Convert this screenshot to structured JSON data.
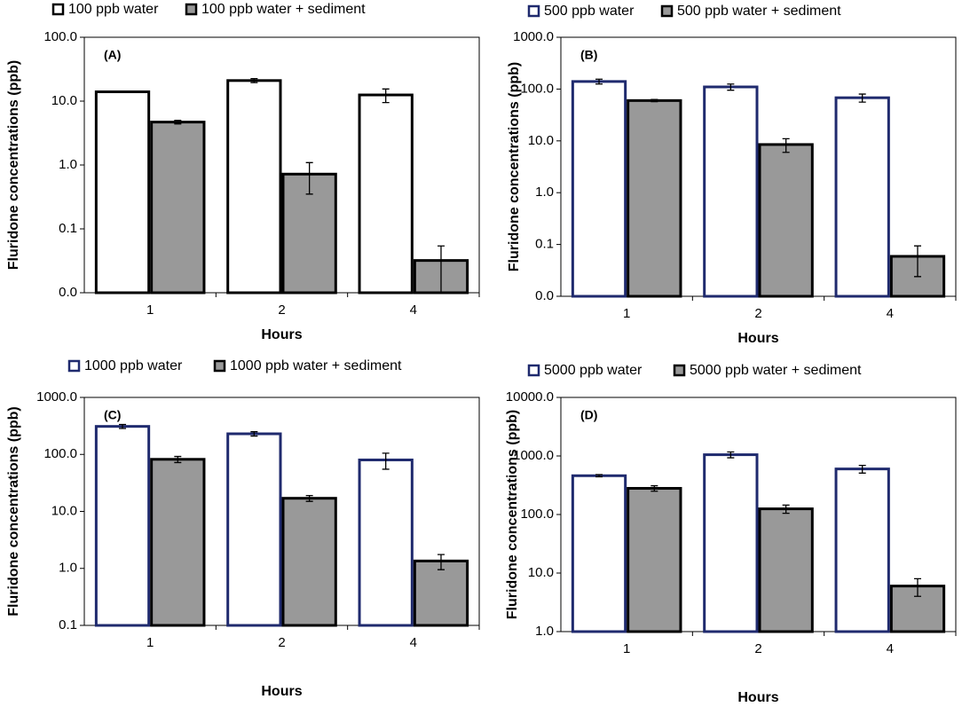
{
  "chart_data": [
    {
      "type": "bar",
      "log": true,
      "annotation": "(A)",
      "xlabel": "Hours",
      "ylabel": "Fluridone concentrations (ppb)",
      "categories": [
        "1",
        "2",
        "4"
      ],
      "series": [
        {
          "name": "100 ppb water",
          "color": "#ffffff",
          "edgecolor": "#000000",
          "values": [
            14,
            21,
            12.5
          ],
          "errors": [
            0.3,
            1.5,
            3
          ]
        },
        {
          "name": "100 ppb water + sediment",
          "color": "#999999",
          "edgecolor": "#000000",
          "values": [
            4.7,
            0.72,
            0.032
          ],
          "errors": [
            0.3,
            0.37,
            0.022
          ]
        }
      ],
      "ylim": [
        0.01,
        100
      ],
      "yticks": [
        {
          "value": 0.01,
          "label": "0.0"
        },
        {
          "value": 0.1,
          "label": "0.1"
        },
        {
          "value": 1,
          "label": "1.0"
        },
        {
          "value": 10,
          "label": "10.0"
        },
        {
          "value": 100,
          "label": "100.0"
        }
      ]
    },
    {
      "type": "bar",
      "log": true,
      "annotation": "(B)",
      "xlabel": "Hours",
      "ylabel": "Fluridone concentrations (ppb)",
      "categories": [
        "1",
        "2",
        "4"
      ],
      "series": [
        {
          "name": "500 ppb water",
          "color": "#ffffff",
          "edgecolor": "#1f2a6e",
          "values": [
            140,
            110,
            68
          ],
          "errors": [
            15,
            15,
            12
          ]
        },
        {
          "name": "500 ppb water + sediment",
          "color": "#999999",
          "edgecolor": "#000000",
          "values": [
            60,
            8.5,
            0.059
          ],
          "errors": [
            3,
            2.5,
            0.035
          ]
        }
      ],
      "ylim": [
        0.01,
        1000
      ],
      "yticks": [
        {
          "value": 0.01,
          "label": "0.0"
        },
        {
          "value": 0.1,
          "label": "0.1"
        },
        {
          "value": 1,
          "label": "1.0"
        },
        {
          "value": 10,
          "label": "10.0"
        },
        {
          "value": 100,
          "label": "100.0"
        },
        {
          "value": 1000,
          "label": "1000.0"
        }
      ]
    },
    {
      "type": "bar",
      "log": true,
      "annotation": "(C)",
      "xlabel": "Hours",
      "ylabel": "Fluridone concentrations (ppb)",
      "categories": [
        "1",
        "2",
        "4"
      ],
      "series": [
        {
          "name": "1000 ppb water",
          "color": "#ffffff",
          "edgecolor": "#1f2a6e",
          "values": [
            310,
            230,
            80
          ],
          "errors": [
            25,
            20,
            25
          ]
        },
        {
          "name": "1000 ppb water + sediment",
          "color": "#999999",
          "edgecolor": "#000000",
          "values": [
            82,
            17,
            1.35
          ],
          "errors": [
            10,
            2,
            0.4
          ]
        }
      ],
      "ylim": [
        0.1,
        1000
      ],
      "yticks": [
        {
          "value": 0.1,
          "label": "0.1"
        },
        {
          "value": 1,
          "label": "1.0"
        },
        {
          "value": 10,
          "label": "10.0"
        },
        {
          "value": 100,
          "label": "100.0"
        },
        {
          "value": 1000,
          "label": "1000.0"
        }
      ]
    },
    {
      "type": "bar",
      "log": true,
      "annotation": "(D)",
      "xlabel": "Hours",
      "ylabel": "Fluridone concentrations (ppb)",
      "categories": [
        "1",
        "2",
        "4"
      ],
      "series": [
        {
          "name": "5000 ppb water",
          "color": "#ffffff",
          "edgecolor": "#1f2a6e",
          "values": [
            460,
            1050,
            600
          ],
          "errors": [
            20,
            120,
            90
          ]
        },
        {
          "name": "5000 ppb water + sediment",
          "color": "#999999",
          "edgecolor": "#000000",
          "values": [
            280,
            125,
            6
          ],
          "errors": [
            30,
            20,
            2
          ]
        }
      ],
      "ylim": [
        1,
        10000
      ],
      "yticks": [
        {
          "value": 1,
          "label": "1.0"
        },
        {
          "value": 10,
          "label": "10.0"
        },
        {
          "value": 100,
          "label": "100.0"
        },
        {
          "value": 1000,
          "label": "1000.0"
        },
        {
          "value": 10000,
          "label": "10000.0"
        }
      ]
    }
  ]
}
